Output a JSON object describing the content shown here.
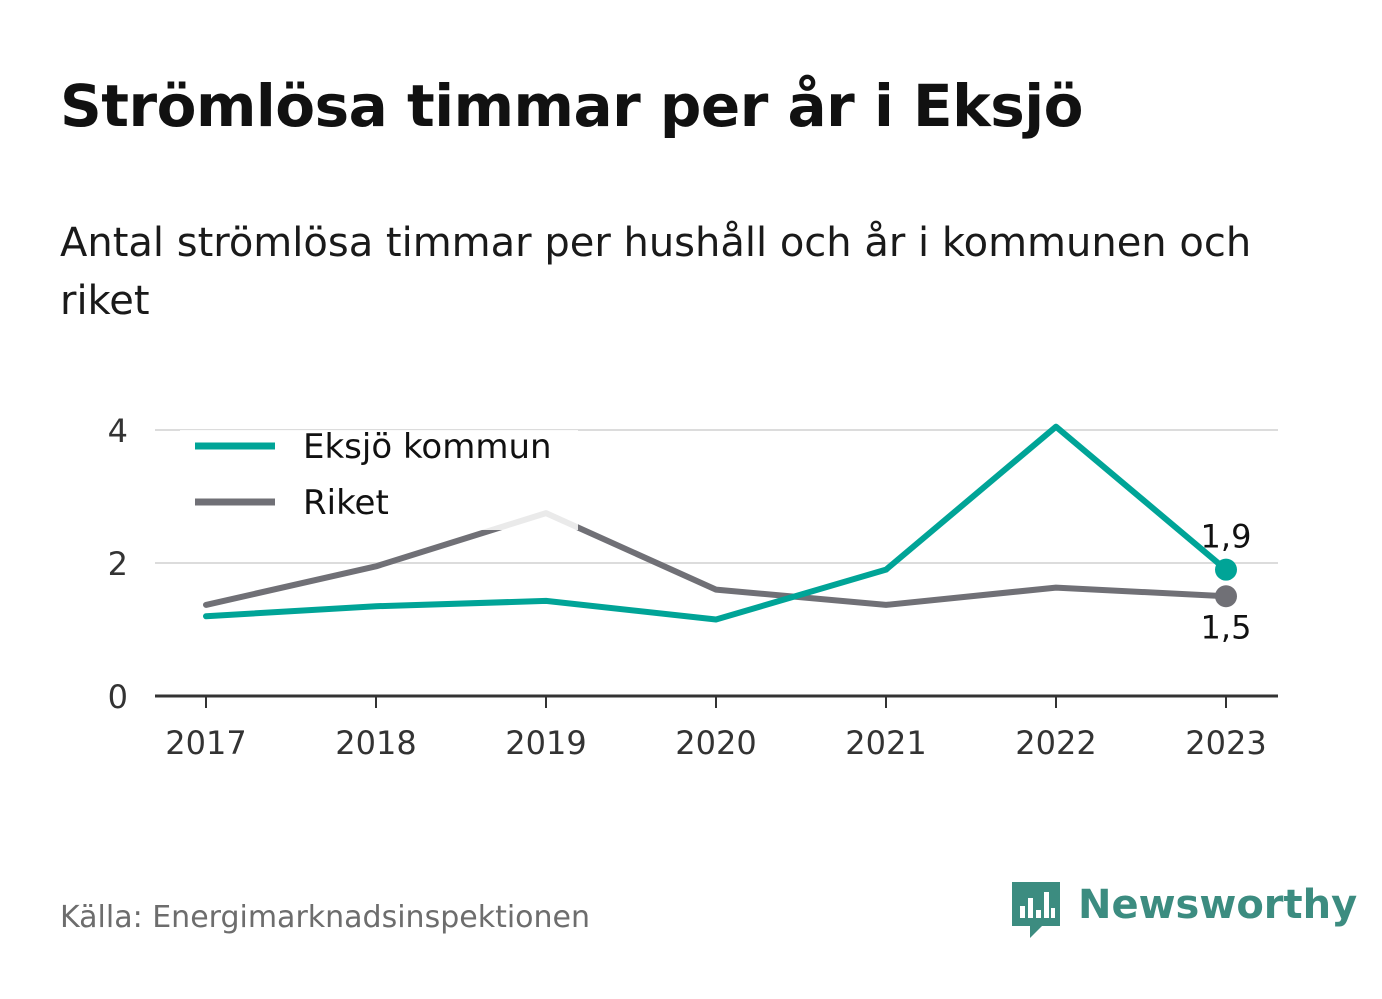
{
  "title": "Strömlösa timmar per år i Eksjö",
  "subtitle": "Antal strömlösa timmar per hushåll och år i kommunen och riket",
  "source": "Källa: Energimarknadsinspektionen",
  "brand": {
    "name": "Newsworthy",
    "icon": "newsworthy-logo-icon",
    "color": "#3c8c80"
  },
  "chart_data": {
    "type": "line",
    "x": [
      "2017",
      "2018",
      "2019",
      "2020",
      "2021",
      "2022",
      "2023"
    ],
    "ylim": [
      0,
      4
    ],
    "yticks": [
      "0",
      "2",
      "4"
    ],
    "grid": true,
    "legend": "top-left",
    "series": [
      {
        "name": "Eksjö kommun",
        "color": "#00a497",
        "values": [
          1.2,
          1.35,
          1.43,
          1.15,
          1.9,
          4.05,
          1.9
        ],
        "end_label": "1,9",
        "end_label_pos": "above"
      },
      {
        "name": "Riket",
        "color": "#707076",
        "values": [
          1.37,
          1.95,
          2.75,
          1.6,
          1.37,
          1.63,
          1.5
        ],
        "end_label": "1,5",
        "end_label_pos": "below"
      }
    ]
  }
}
